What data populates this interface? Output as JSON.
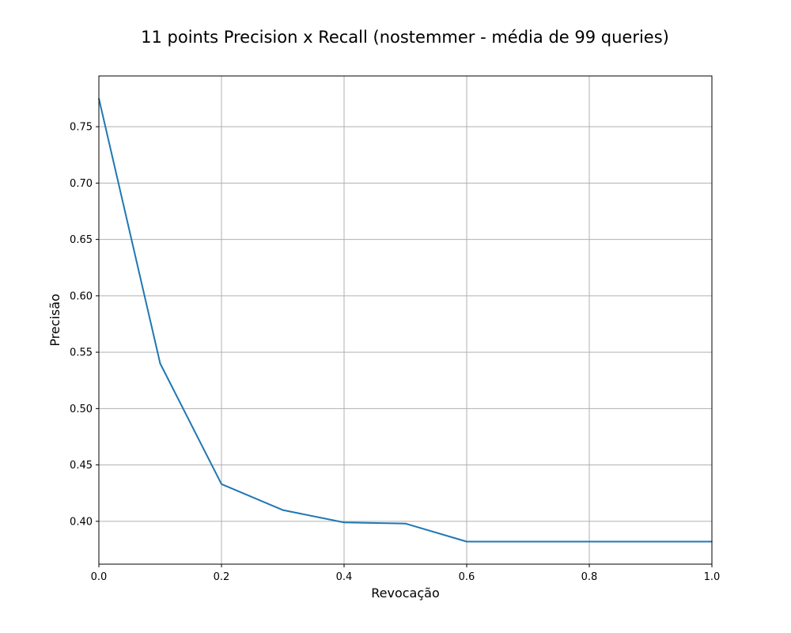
{
  "chart_data": {
    "type": "line",
    "title": "11 points Precision x Recall (nostemmer - média de 99 queries)",
    "xlabel": "Revocação",
    "ylabel": "Precisão",
    "xlim": [
      0.0,
      1.0
    ],
    "ylim": [
      0.362,
      0.795
    ],
    "grid": true,
    "x_ticks": [
      0.0,
      0.2,
      0.4,
      0.6,
      0.8,
      1.0
    ],
    "x_tick_labels": [
      "0.0",
      "0.2",
      "0.4",
      "0.6",
      "0.8",
      "1.0"
    ],
    "y_ticks": [
      0.4,
      0.45,
      0.5,
      0.55,
      0.6,
      0.65,
      0.7,
      0.75
    ],
    "y_tick_labels": [
      "0.40",
      "0.45",
      "0.50",
      "0.55",
      "0.60",
      "0.65",
      "0.70",
      "0.75"
    ],
    "series": [
      {
        "color": "#1f77b4",
        "x": [
          0.0,
          0.1,
          0.2,
          0.3,
          0.4,
          0.5,
          0.6,
          0.7,
          0.8,
          0.9,
          1.0
        ],
        "values": [
          0.775,
          0.54,
          0.433,
          0.41,
          0.399,
          0.398,
          0.382,
          0.382,
          0.382,
          0.382,
          0.382
        ]
      }
    ]
  }
}
